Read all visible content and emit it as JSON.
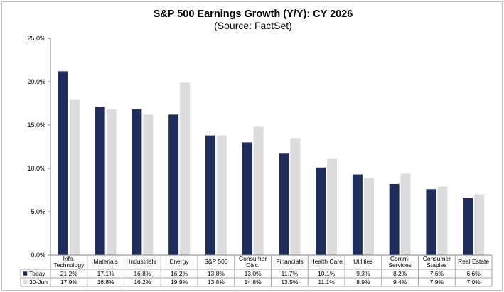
{
  "chart_data": {
    "type": "bar",
    "title": "S&P 500 Earnings Growth (Y/Y): CY 2026",
    "subtitle": "(Source: FactSet)",
    "categories": [
      [
        "Info.",
        "Technology"
      ],
      [
        "Materials"
      ],
      [
        "Industrials"
      ],
      [
        "Energy"
      ],
      [
        "S&P 500"
      ],
      [
        "Consumer",
        "Disc."
      ],
      [
        "Financials"
      ],
      [
        "Health Care"
      ],
      [
        "Utilities"
      ],
      [
        "Comm.",
        "Services"
      ],
      [
        "Consumer",
        "Staples"
      ],
      [
        "Real Estate"
      ]
    ],
    "series": [
      {
        "name": "Today",
        "color": "#1f2d5a",
        "values": [
          21.2,
          17.1,
          16.8,
          16.2,
          13.8,
          13.0,
          11.7,
          10.1,
          9.3,
          8.2,
          7.6,
          6.6
        ],
        "labels": [
          "21.2%",
          "17.1%",
          "16.8%",
          "16.2%",
          "13.8%",
          "13.0%",
          "11.7%",
          "10.1%",
          "9.3%",
          "8.2%",
          "7.6%",
          "6.6%"
        ]
      },
      {
        "name": "30-Jun",
        "color": "#dcdcdc",
        "values": [
          17.9,
          16.8,
          16.2,
          19.9,
          13.8,
          14.8,
          13.5,
          11.1,
          8.9,
          9.4,
          7.9,
          7.0
        ],
        "labels": [
          "17.9%",
          "16.8%",
          "16.2%",
          "19.9%",
          "13.8%",
          "14.8%",
          "13.5%",
          "11.1%",
          "8.9%",
          "9.4%",
          "7.9%",
          "7.0%"
        ]
      }
    ],
    "ylim": [
      0,
      25
    ],
    "yticks": [
      0,
      5,
      10,
      15,
      20,
      25
    ],
    "ytick_labels": [
      "0.0%",
      "5.0%",
      "10.0%",
      "15.0%",
      "20.0%",
      "25.0%"
    ],
    "xlabel": "",
    "ylabel": "",
    "grid": false,
    "legend": "data-table-left"
  }
}
